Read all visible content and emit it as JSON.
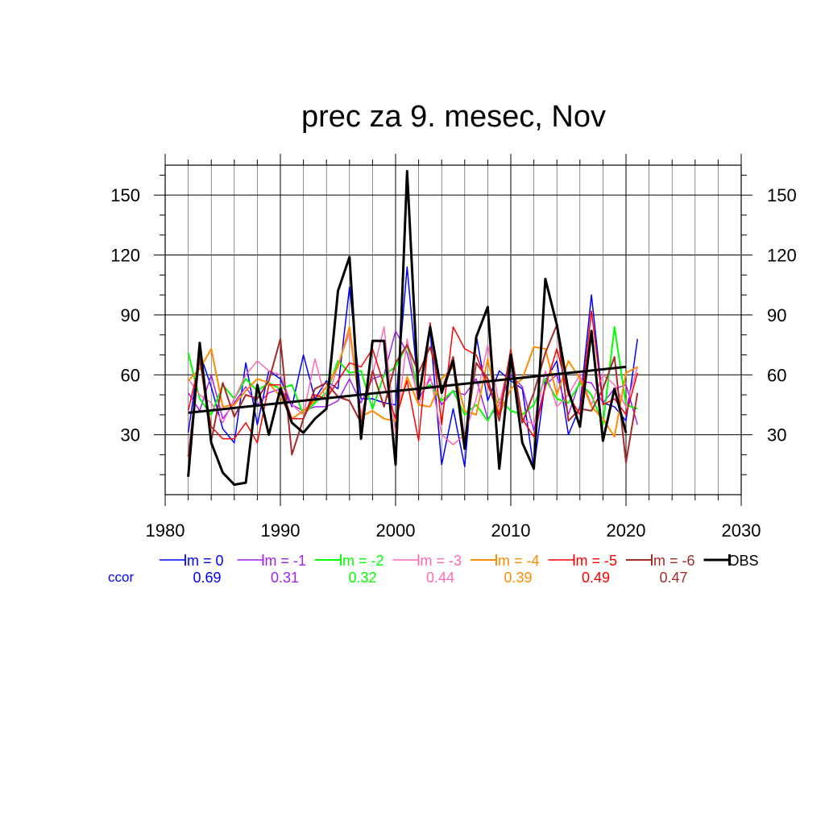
{
  "chart_data": {
    "type": "line",
    "title": "prec za 9. mesec, Nov",
    "xlabel": "",
    "ylabel": "",
    "xlim": [
      1980,
      2030
    ],
    "ylim": [
      0,
      165
    ],
    "x_ticks": [
      1980,
      1990,
      2000,
      2010,
      2020,
      2030
    ],
    "y_ticks": [
      30,
      60,
      90,
      120,
      150
    ],
    "grid": true,
    "legend_position": "bottom",
    "ccor_label": "ccor",
    "years": [
      1982,
      1983,
      1984,
      1985,
      1986,
      1987,
      1988,
      1989,
      1990,
      1991,
      1992,
      1993,
      1994,
      1995,
      1996,
      1997,
      1998,
      1999,
      2000,
      2001,
      2002,
      2003,
      2004,
      2005,
      2006,
      2007,
      2008,
      2009,
      2010,
      2011,
      2012,
      2013,
      2014,
      2015,
      2016,
      2017,
      2018,
      2019,
      2020,
      2021
    ],
    "series": [
      {
        "name": "lm = 0",
        "ccor": "0.69",
        "color": "#0000ff",
        "width": 1.5,
        "values": [
          31,
          71,
          54,
          33,
          26,
          66,
          35,
          62,
          58,
          44,
          70,
          48,
          57,
          53,
          104,
          48,
          48,
          46,
          45,
          114,
          50,
          82,
          15,
          43,
          14,
          80,
          47,
          62,
          57,
          53,
          13,
          57,
          67,
          30,
          44,
          100,
          46,
          44,
          37,
          78
        ]
      },
      {
        "name": "lm = -1",
        "ccor": "0.31",
        "color": "#a020f0",
        "width": 1.5,
        "values": [
          51,
          42,
          60,
          38,
          46,
          54,
          45,
          51,
          53,
          45,
          42,
          44,
          44,
          47,
          58,
          46,
          58,
          60,
          82,
          71,
          48,
          58,
          45,
          52,
          50,
          58,
          38,
          45,
          60,
          54,
          32,
          55,
          60,
          40,
          57,
          56,
          46,
          53,
          55,
          35
        ]
      },
      {
        "name": "lm = -2",
        "ccor": "0.32",
        "color": "#00ff00",
        "width": 2,
        "values": [
          71,
          48,
          40,
          55,
          48,
          58,
          52,
          56,
          53,
          55,
          40,
          46,
          51,
          67,
          61,
          62,
          43,
          60,
          64,
          75,
          52,
          55,
          47,
          52,
          40,
          45,
          37,
          48,
          42,
          40,
          45,
          58,
          48,
          46,
          56,
          50,
          35,
          84,
          45,
          43
        ]
      },
      {
        "name": "lm = -3",
        "ccor": "0.44",
        "color": "#ff69b4",
        "width": 1.5,
        "values": [
          58,
          50,
          46,
          36,
          48,
          60,
          67,
          62,
          60,
          45,
          40,
          68,
          46,
          65,
          81,
          40,
          60,
          84,
          30,
          78,
          45,
          60,
          30,
          25,
          30,
          48,
          75,
          45,
          70,
          38,
          35,
          62,
          44,
          50,
          60,
          45,
          60,
          55,
          44,
          64
        ]
      },
      {
        "name": "lm = -4",
        "ccor": "0.39",
        "color": "#ff8c00",
        "width": 2,
        "values": [
          57,
          63,
          73,
          44,
          45,
          52,
          58,
          56,
          49,
          38,
          42,
          47,
          54,
          64,
          84,
          39,
          42,
          38,
          37,
          59,
          45,
          44,
          58,
          64,
          42,
          40,
          68,
          40,
          53,
          58,
          74,
          73,
          50,
          67,
          58,
          44,
          38,
          29,
          61,
          64
        ]
      },
      {
        "name": "lm = -5",
        "ccor": "0.49",
        "color": "#ff0000",
        "width": 1.5,
        "values": [
          42,
          67,
          34,
          28,
          28,
          36,
          26,
          55,
          55,
          38,
          38,
          50,
          48,
          57,
          66,
          64,
          73,
          55,
          38,
          57,
          27,
          86,
          35,
          84,
          73,
          70,
          55,
          40,
          73,
          38,
          29,
          54,
          73,
          50,
          40,
          92,
          45,
          48,
          40,
          61
        ]
      },
      {
        "name": "lm = -6",
        "ccor": "0.47",
        "color": "#a52a2a",
        "width": 2,
        "values": [
          19,
          69,
          27,
          56,
          39,
          50,
          48,
          57,
          78,
          20,
          38,
          53,
          56,
          49,
          47,
          36,
          62,
          44,
          66,
          75,
          61,
          74,
          52,
          69,
          27,
          66,
          58,
          37,
          72,
          36,
          51,
          71,
          85,
          37,
          43,
          42,
          53,
          69,
          16,
          51
        ]
      },
      {
        "name": "OBS",
        "ccor": "",
        "color": "#000000",
        "width": 3,
        "values": [
          9,
          76,
          26,
          11,
          5,
          6,
          55,
          30,
          53,
          36,
          31,
          38,
          43,
          102,
          119,
          28,
          77,
          77,
          15,
          162,
          48,
          84,
          51,
          67,
          23,
          79,
          94,
          13,
          70,
          26,
          13,
          108,
          85,
          52,
          34,
          82,
          27,
          53,
          31,
          null
        ]
      }
    ],
    "trend": {
      "color": "#000000",
      "x": [
        1982,
        2020
      ],
      "y": [
        41,
        64
      ]
    }
  }
}
